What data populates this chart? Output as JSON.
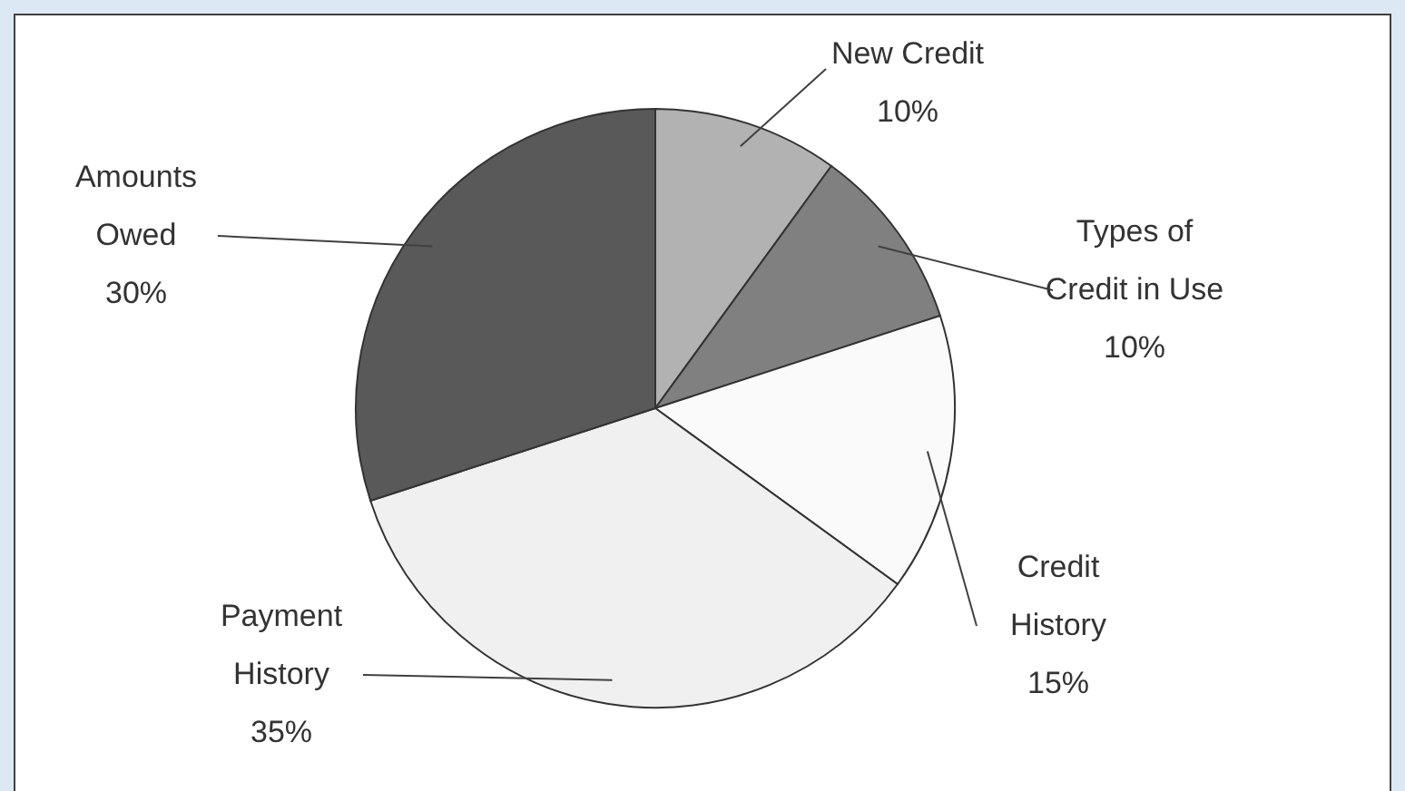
{
  "chart_data": {
    "type": "pie",
    "categories": [
      "New Credit",
      "Types of Credit in Use",
      "Credit History",
      "Payment History",
      "Amounts Owed"
    ],
    "values": [
      10,
      10,
      15,
      35,
      30
    ],
    "value_labels": [
      "10%",
      "10%",
      "15%",
      "35%",
      "30%"
    ],
    "colors": [
      "#b2b2b2",
      "#808080",
      "#fafafa",
      "#f0f0f0",
      "#595959"
    ]
  }
}
